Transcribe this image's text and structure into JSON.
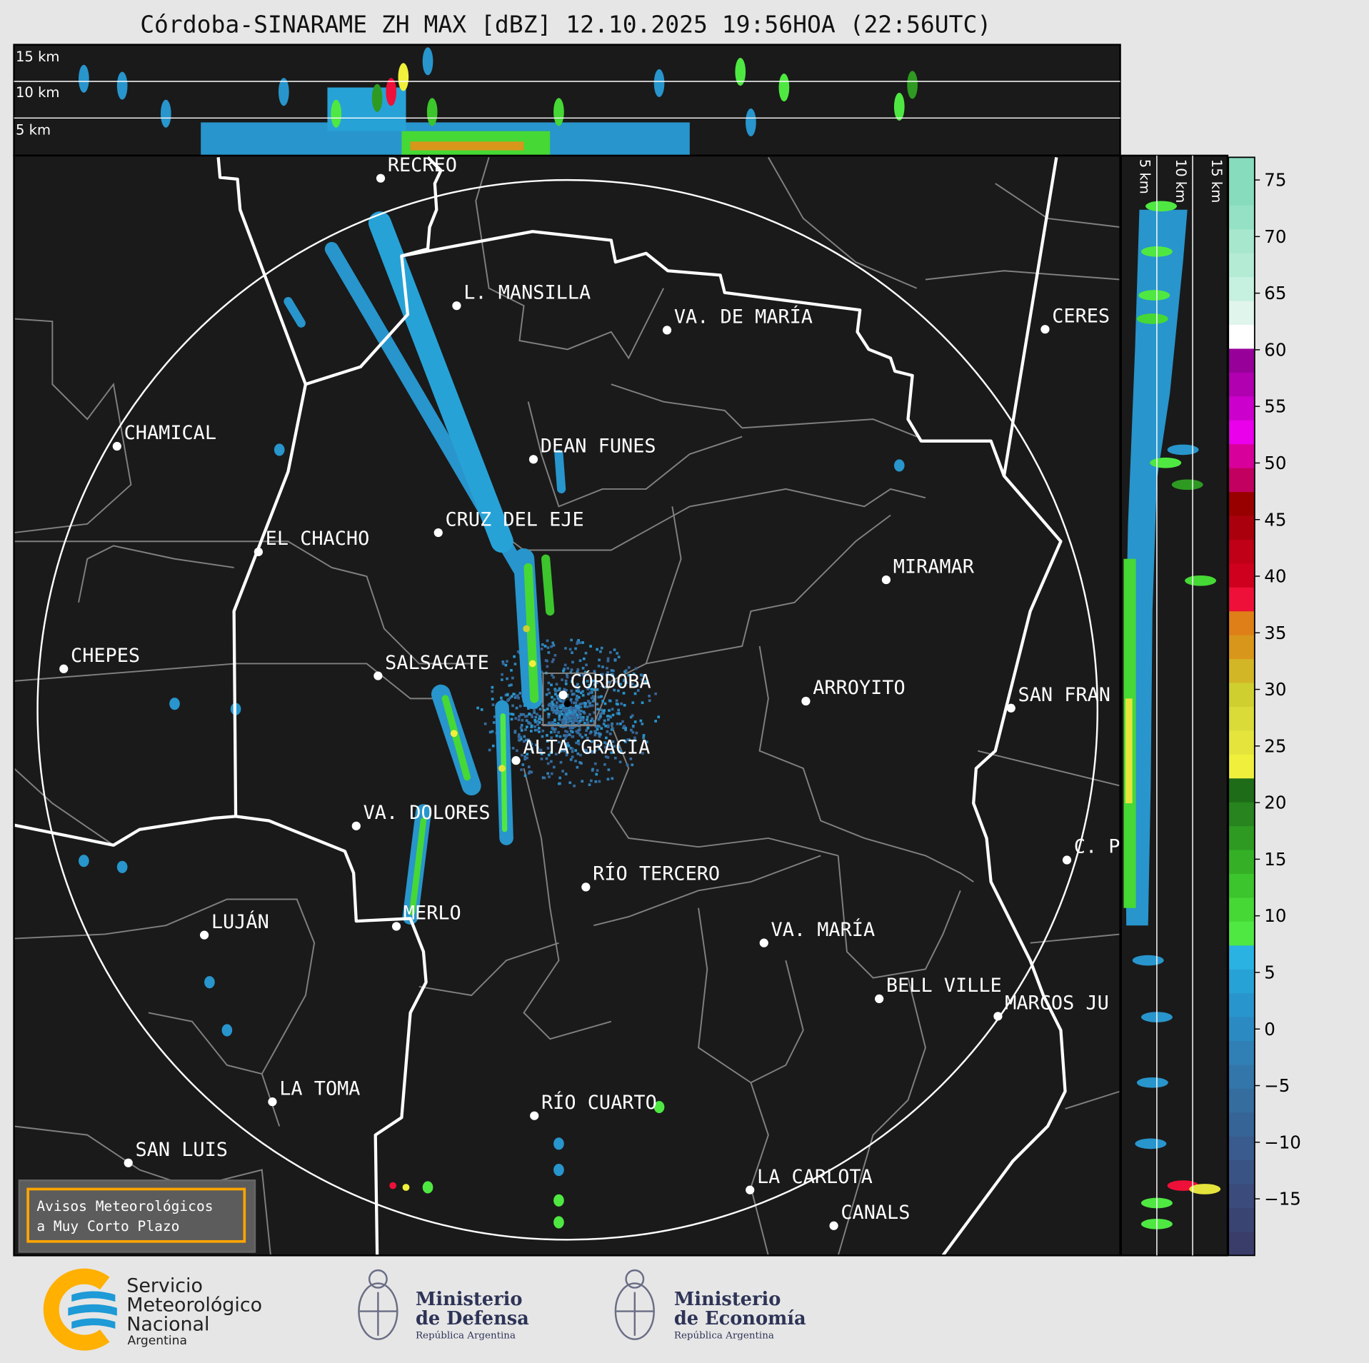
{
  "title": "Córdoba-SINARAME ZH MAX [dBZ] 12.10.2025 19:56HOA (22:56UTC)",
  "top_panel": {
    "labels": [
      "15 km",
      "10 km",
      "5 km"
    ]
  },
  "side_panel": {
    "labels": [
      "5 km",
      "10 km",
      "15 km"
    ]
  },
  "colorbar": {
    "unit": "dBZ",
    "range": [
      -20,
      77
    ],
    "ticks": [
      "75",
      "70",
      "65",
      "60",
      "55",
      "50",
      "45",
      "40",
      "35",
      "30",
      "25",
      "20",
      "15",
      "10",
      "5",
      "0",
      "−5",
      "−10",
      "−15"
    ],
    "colors_bottom_to_top": [
      "#3a3d6a",
      "#3a4473",
      "#3a4b7c",
      "#3a5385",
      "#395b8e",
      "#376496",
      "#356d9f",
      "#3376aa",
      "#3080b6",
      "#2c8ac2",
      "#2895cc",
      "#27a2d7",
      "#2ab2e2",
      "#4fe842",
      "#46d835",
      "#3cc52c",
      "#35b026",
      "#2e9a22",
      "#28841e",
      "#1f6c18",
      "#f0f03c",
      "#e4e43c",
      "#dada38",
      "#cfcf30",
      "#d3b625",
      "#d8961a",
      "#de7f18",
      "#ee1038",
      "#cf001e",
      "#bf0016",
      "#aa000e",
      "#980000",
      "#c20060",
      "#d8009a",
      "#ea00ea",
      "#cc00cc",
      "#b000b0",
      "#98009a",
      "#ffffff",
      "#e0f5ec",
      "#c6f0df",
      "#b4ebd4",
      "#a6e7ce",
      "#94e1c5",
      "#88dcbe",
      "#88dcbe"
    ]
  },
  "cities": [
    "RECREO",
    "L. MANSILLA",
    "VA. DE MARÍA",
    "CERES",
    "CHAMICAL",
    "DEAN FUNES",
    "CRUZ DEL EJE",
    "EL CHACHO",
    "MIRAMAR",
    "CHEPES",
    "SALSACATE",
    "CÓRDOBA",
    "ARROYITO",
    "SAN FRAN",
    "ALTA GRACIA",
    "VA. DOLORES",
    "C. P",
    "RÍO TERCERO",
    "MERLO",
    "LUJÁN",
    "VA. MARÍA",
    "BELL VILLE",
    "MARCOS JU",
    "LA TOMA",
    "RÍO CUARTO",
    "SAN LUIS",
    "LA CARLOTA",
    "CANALS"
  ],
  "warning_box": {
    "line1": "Avisos Meteorológicos",
    "line2": "a Muy Corto Plazo",
    "border_color": "#ffa500"
  },
  "logos": {
    "smn": {
      "line1": "Servicio",
      "line2": "Meteorológico",
      "line3": "Nacional",
      "line4": "Argentina"
    },
    "defensa": {
      "line1": "Ministerio",
      "line2": "de Defensa",
      "line3": "República Argentina"
    },
    "economia": {
      "line1": "Ministerio",
      "line2": "de Economía",
      "line3": "República Argentina"
    }
  }
}
